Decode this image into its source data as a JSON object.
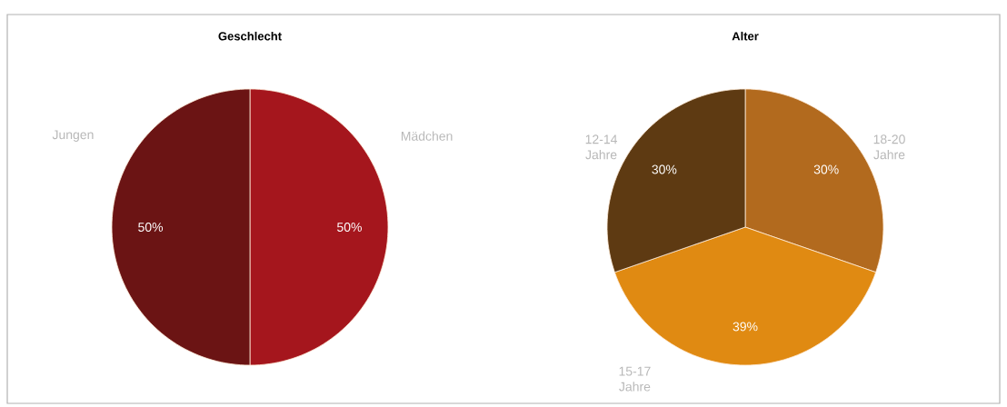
{
  "chart_data": [
    {
      "type": "pie",
      "title": "Geschlecht",
      "categories": [
        "Mädchen",
        "Jungen"
      ],
      "values": [
        50,
        50
      ],
      "colors": [
        "#a5161d",
        "#6b1414"
      ],
      "value_labels": [
        "50%",
        "50%"
      ]
    },
    {
      "type": "pie",
      "title": "Alter",
      "categories": [
        "18-20 Jahre",
        "15-17 Jahre",
        "12-14 Jahre"
      ],
      "values": [
        30,
        39,
        30
      ],
      "colors": [
        "#b26a1e",
        "#e08a12",
        "#5e3a12"
      ],
      "value_labels": [
        "30%",
        "39%",
        "30%"
      ]
    }
  ]
}
